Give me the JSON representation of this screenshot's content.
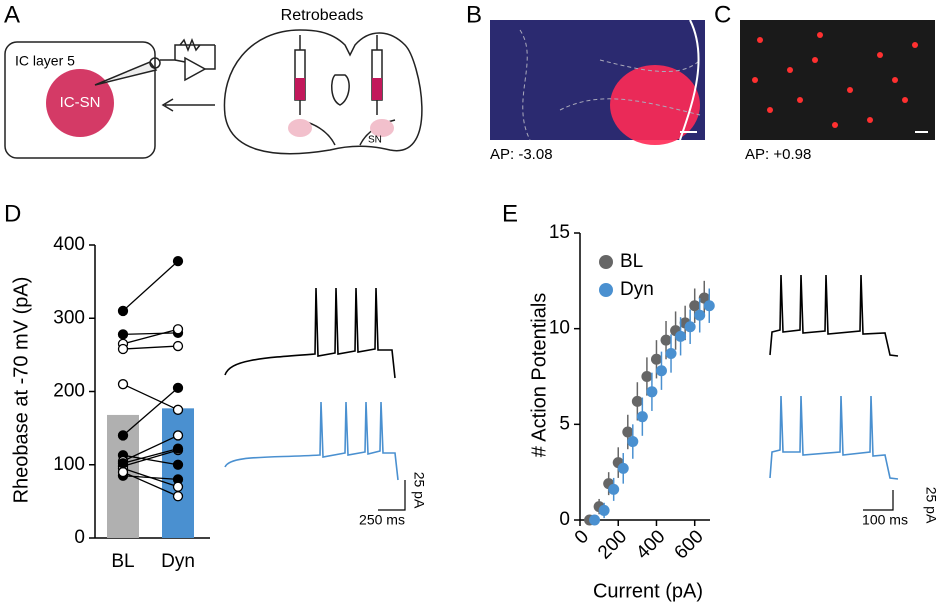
{
  "panel_labels": [
    "A",
    "B",
    "C",
    "D",
    "E"
  ],
  "diagram": {
    "box_label": "IC layer 5",
    "cell_label": "IC-SN",
    "injection_label": "Retrobeads",
    "region_label": "SN"
  },
  "images": [
    {
      "caption": "AP: -3.08"
    },
    {
      "caption": "AP: +0.98"
    }
  ],
  "scale_bars": {
    "left": {
      "y": "25 pA",
      "x": "250 ms"
    },
    "right": {
      "x": "100 ms",
      "y": "25 pA"
    }
  },
  "chart_data": [
    {
      "type": "bar",
      "ylabel": "Rheobase at -70 mV (pA)",
      "categories": [
        "BL",
        "Dyn"
      ],
      "values": [
        168,
        177
      ],
      "colors": [
        "#b0b0b0",
        "#4a90d0"
      ],
      "ylim": [
        0,
        400
      ],
      "yticks": [
        0,
        100,
        200,
        300,
        400
      ],
      "pairs": [
        {
          "filled": true,
          "values": [
            310,
            378
          ]
        },
        {
          "filled": true,
          "values": [
            278,
            280
          ]
        },
        {
          "filled": true,
          "values": [
            140,
            205
          ]
        },
        {
          "filled": true,
          "values": [
            113,
            100
          ]
        },
        {
          "filled": true,
          "values": [
            85,
            80
          ]
        },
        {
          "filled": false,
          "values": [
            265,
            285
          ]
        },
        {
          "filled": false,
          "values": [
            258,
            262
          ]
        },
        {
          "filled": false,
          "values": [
            210,
            175
          ]
        },
        {
          "filled": false,
          "values": [
            105,
            140
          ]
        },
        {
          "filled": false,
          "values": [
            98,
            120
          ]
        },
        {
          "filled": false,
          "values": [
            95,
            70
          ]
        },
        {
          "filled": false,
          "values": [
            90,
            57
          ]
        },
        {
          "filled": true,
          "values": [
            102,
            122
          ]
        }
      ]
    },
    {
      "type": "scatter",
      "ylabel": "# Action Potentials",
      "xlabel": "Current (pA)",
      "x": [
        50,
        100,
        150,
        200,
        250,
        300,
        350,
        400,
        450,
        500,
        550,
        600,
        650
      ],
      "series": [
        {
          "name": "BL",
          "color": "#666666",
          "values": [
            0,
            0.7,
            1.9,
            3.0,
            4.6,
            6.2,
            7.5,
            8.4,
            9.4,
            9.9,
            10.3,
            11.2,
            11.6
          ],
          "errors": [
            0,
            0.4,
            0.6,
            0.8,
            0.9,
            1.0,
            1.0,
            1.0,
            1.0,
            1.0,
            0.9,
            0.9,
            0.9
          ]
        },
        {
          "name": "Dyn",
          "color": "#4a90d0",
          "values": [
            0,
            0.5,
            1.6,
            2.7,
            4.1,
            5.4,
            6.7,
            7.8,
            8.7,
            9.6,
            10.1,
            10.7,
            11.2
          ],
          "errors": [
            0,
            0.4,
            0.6,
            0.8,
            0.9,
            1.0,
            1.0,
            1.0,
            1.0,
            1.0,
            0.9,
            0.9,
            0.9
          ]
        }
      ],
      "xlim": [
        0,
        680
      ],
      "xticks": [
        0,
        200,
        400,
        600
      ],
      "ylim": [
        0,
        15
      ],
      "yticks": [
        0,
        5,
        10,
        15
      ]
    }
  ]
}
